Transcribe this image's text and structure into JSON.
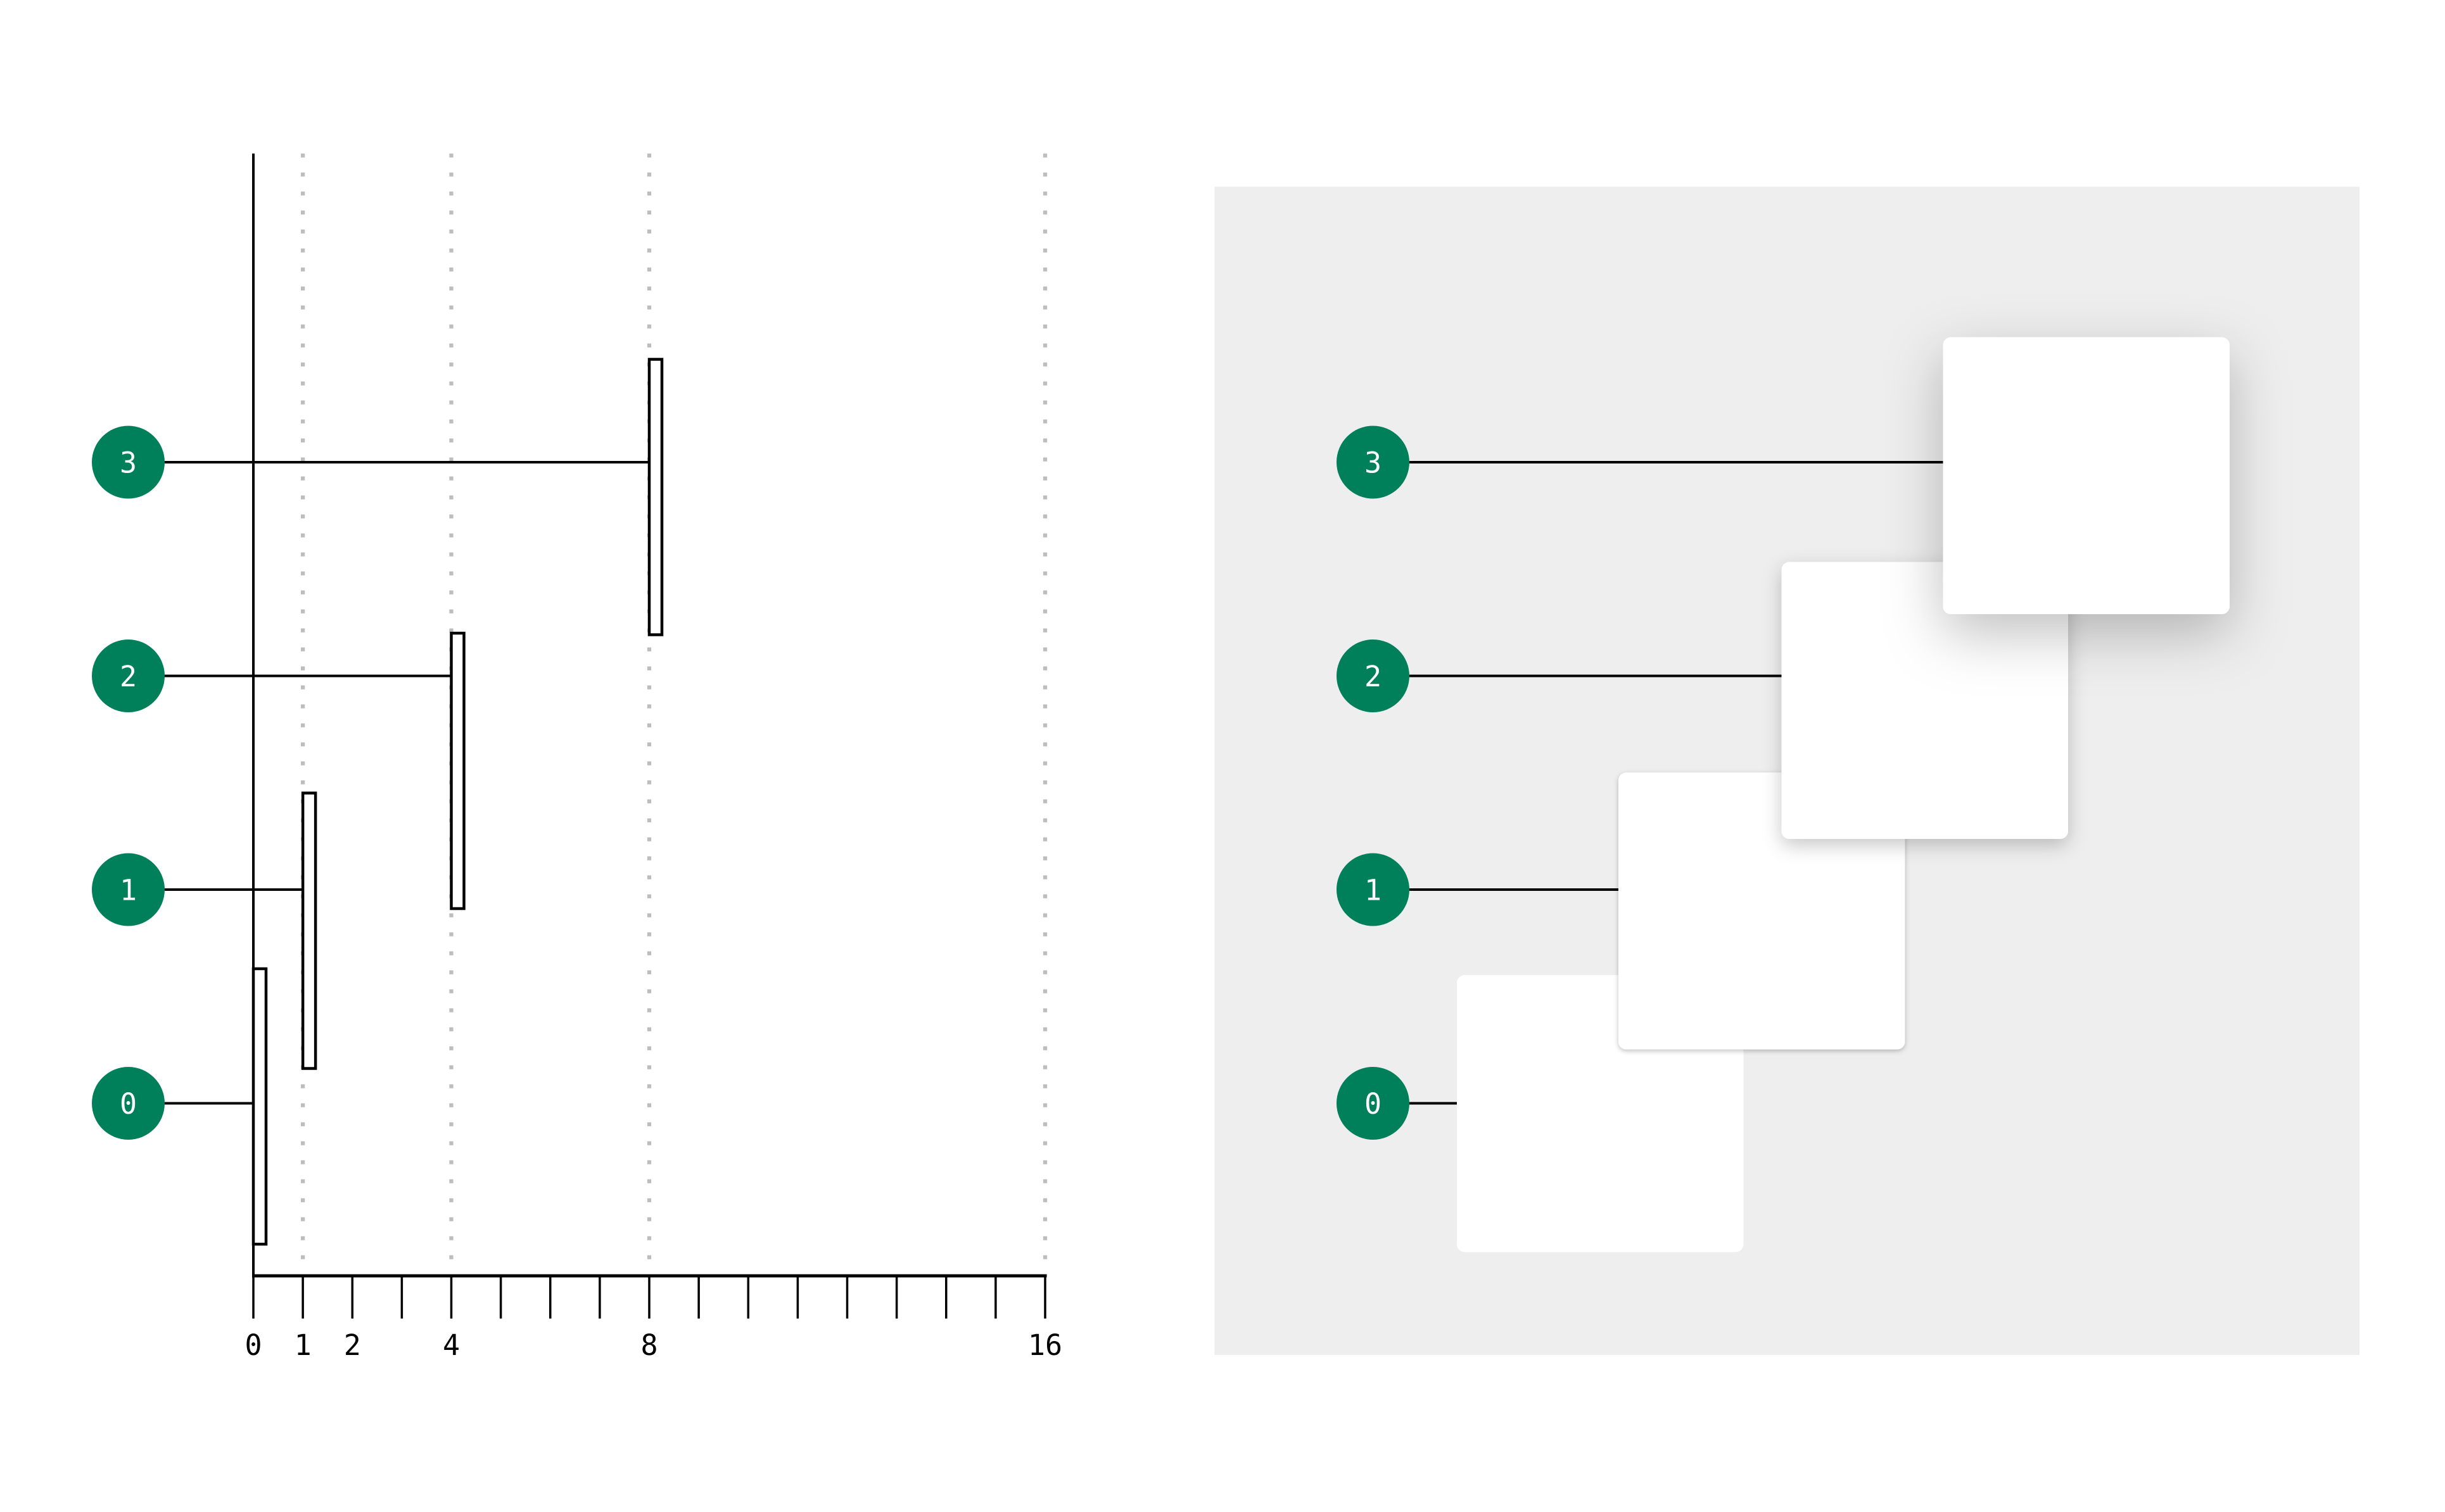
{
  "colors": {
    "badge": "#00805a",
    "panel": "#eeeeee",
    "card": "#ffffff",
    "grid": "#bdbdbd",
    "ink": "#000000"
  },
  "chart_data": {
    "type": "bar",
    "levels": [
      "0",
      "1",
      "2",
      "3"
    ],
    "values": [
      0,
      1,
      4,
      8
    ],
    "xlim": [
      0,
      16
    ],
    "minor_ticks_every": 1,
    "tick_labels": [
      "0",
      "1",
      "2",
      "4",
      "8",
      "16"
    ],
    "gridlines_at": [
      1,
      4,
      8,
      16
    ],
    "grid": "dotted"
  },
  "cards_panel": {
    "levels": [
      "0",
      "1",
      "2",
      "3"
    ]
  }
}
